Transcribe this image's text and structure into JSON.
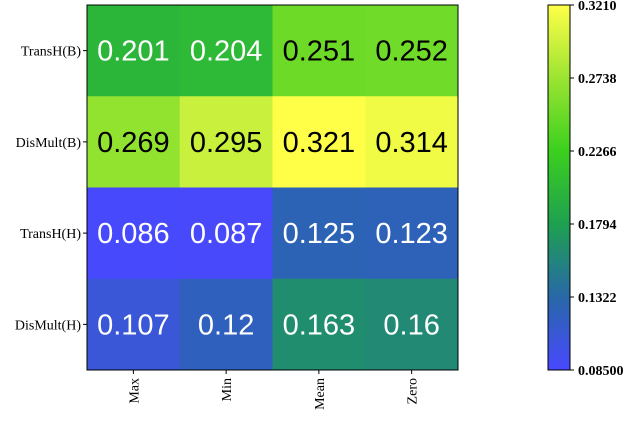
{
  "chart_data": {
    "type": "heatmap",
    "rows": [
      "TransH(B)",
      "DisMult(B)",
      "TransH(H)",
      "DisMult(H)"
    ],
    "categories": [
      "Max",
      "Min",
      "Mean",
      "Zero"
    ],
    "values": [
      [
        0.201,
        0.204,
        0.251,
        0.252
      ],
      [
        0.269,
        0.295,
        0.321,
        0.314
      ],
      [
        0.086,
        0.087,
        0.125,
        0.123
      ],
      [
        0.107,
        0.12,
        0.163,
        0.16
      ]
    ],
    "colormap": [
      "#4848ff",
      "#2868a8",
      "#1ea050",
      "#3cd01e",
      "#9ce432",
      "#ffff48"
    ],
    "zlim": [
      0.085,
      0.321
    ],
    "zticks": [
      {
        "value": 0.085,
        "label": "0.08500"
      },
      0.1322,
      0.1794,
      0.2266,
      0.2738,
      {
        "value": 0.321,
        "label": "0.3210"
      }
    ]
  }
}
